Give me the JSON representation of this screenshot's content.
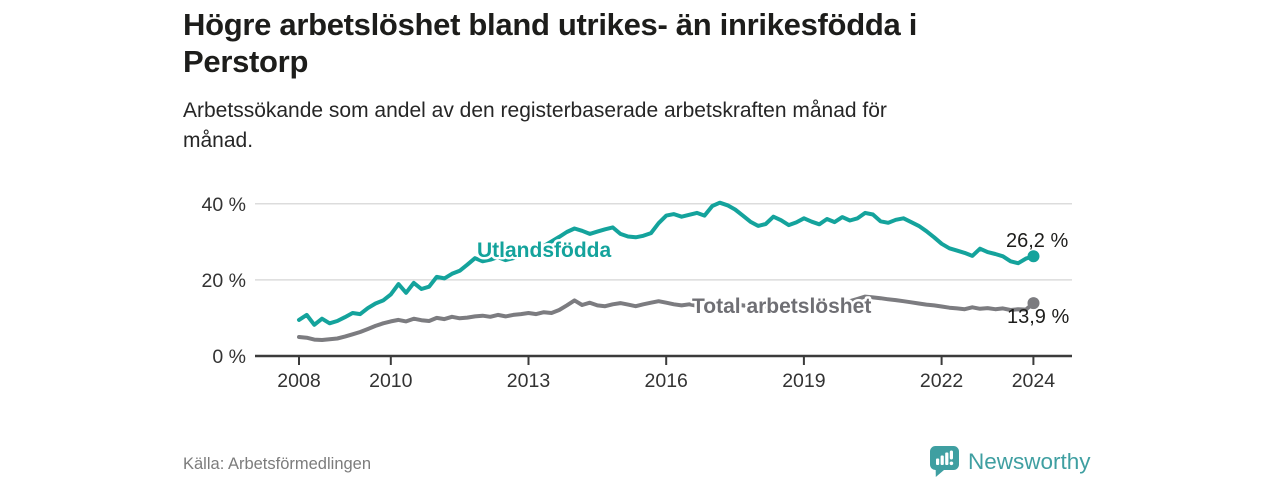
{
  "header": {
    "title_lines": [
      "Högre arbetslöshet bland utrikes- än inrikesfödda i",
      "Perstorp"
    ],
    "subtitle_lines": [
      "Arbetssökande som andel av den registerbaserade arbetskraften månad för",
      "månad."
    ]
  },
  "footer": {
    "source": "Källa: Arbetsförmedlingen",
    "brand_name": "Newsworthy",
    "brand_icon": "newsworthy-speech-bubble-barchart-icon",
    "brand_color": "#3f9fa1"
  },
  "colors": {
    "series_foreign": "#14a39c",
    "series_total": "#7c7c80",
    "series_total_label": "#6f6f74",
    "grid": "#dcdcdc",
    "axis": "#3b3b3b",
    "tick_text": "#333333",
    "end_label_text": "#1d1d1b"
  },
  "chart_data": {
    "type": "line",
    "title": "Högre arbetslöshet bland utrikes- än inrikesfödda i Perstorp",
    "subtitle": "Arbetssökande som andel av den registerbaserade arbetskraften månad för månad.",
    "xlabel": "",
    "ylabel": "",
    "x_unit": "year (monthly data)",
    "y_unit": "%",
    "xlim": [
      2007.1,
      2024.85
    ],
    "ylim": [
      0,
      42
    ],
    "grid": "horizontal-only",
    "legend_position": "inline-labels",
    "x_ticks": {
      "values": [
        2008,
        2010,
        2013,
        2016,
        2019,
        2022,
        2024
      ],
      "labels": [
        "2008",
        "2010",
        "2013",
        "2016",
        "2019",
        "2022",
        "2024"
      ]
    },
    "y_ticks": {
      "values": [
        0,
        20,
        40
      ],
      "labels": [
        "0 %",
        "20 %",
        "40 %"
      ]
    },
    "series": [
      {
        "name": "Utlandsfödda",
        "color": "#14a39c",
        "end_label": "26,2 %",
        "end_value": 26.2,
        "x_start": 2008.0,
        "x_step_years": 0.1667,
        "values": [
          9.5,
          10.8,
          8.2,
          9.8,
          8.6,
          9.2,
          10.2,
          11.3,
          11.0,
          12.6,
          13.8,
          14.6,
          16.2,
          18.9,
          16.6,
          19.2,
          17.6,
          18.2,
          20.8,
          20.4,
          21.6,
          22.4,
          24.0,
          25.7,
          24.9,
          25.3,
          26.0,
          25.2,
          25.7,
          26.4,
          27.1,
          27.9,
          28.9,
          30.1,
          31.3,
          32.6,
          33.5,
          32.9,
          32.1,
          32.7,
          33.3,
          33.8,
          32.1,
          31.4,
          31.2,
          31.6,
          32.3,
          34.9,
          36.9,
          37.3,
          36.6,
          37.1,
          37.6,
          36.9,
          39.4,
          40.3,
          39.6,
          38.5,
          36.9,
          35.3,
          34.2,
          34.7,
          36.6,
          35.7,
          34.4,
          35.1,
          36.2,
          35.3,
          34.6,
          36.0,
          35.2,
          36.5,
          35.6,
          36.2,
          37.6,
          37.2,
          35.4,
          35.0,
          35.8,
          36.2,
          35.2,
          34.2,
          32.8,
          31.2,
          29.5,
          28.3,
          27.7,
          27.1,
          26.3,
          28.2,
          27.3,
          26.8,
          26.2,
          24.9,
          24.4,
          25.6,
          26.2
        ]
      },
      {
        "name": "Total arbetslöshet",
        "color": "#7c7c80",
        "end_label": "13,9 %",
        "end_value": 13.9,
        "x_start": 2008.0,
        "x_step_years": 0.1667,
        "values": [
          5.0,
          4.8,
          4.3,
          4.2,
          4.4,
          4.6,
          5.1,
          5.7,
          6.3,
          7.1,
          7.9,
          8.6,
          9.1,
          9.5,
          9.1,
          9.8,
          9.4,
          9.2,
          10.0,
          9.7,
          10.3,
          9.9,
          10.1,
          10.4,
          10.6,
          10.3,
          10.8,
          10.4,
          10.8,
          11.0,
          11.3,
          11.0,
          11.5,
          11.3,
          12.1,
          13.3,
          14.6,
          13.4,
          14.0,
          13.3,
          13.1,
          13.6,
          13.9,
          13.5,
          13.1,
          13.6,
          14.0,
          14.4,
          14.0,
          13.6,
          13.3,
          13.6,
          13.2,
          13.4,
          13.1,
          13.5,
          13.2,
          13.6,
          13.3,
          13.0,
          13.3,
          13.0,
          12.7,
          13.1,
          12.7,
          12.9,
          13.1,
          13.4,
          13.0,
          13.4,
          13.7,
          14.0,
          14.4,
          15.0,
          15.6,
          15.4,
          15.2,
          14.9,
          14.7,
          14.4,
          14.1,
          13.8,
          13.5,
          13.3,
          13.0,
          12.7,
          12.5,
          12.3,
          12.8,
          12.4,
          12.6,
          12.3,
          12.5,
          12.1,
          12.3,
          12.2,
          13.9
        ]
      }
    ]
  }
}
